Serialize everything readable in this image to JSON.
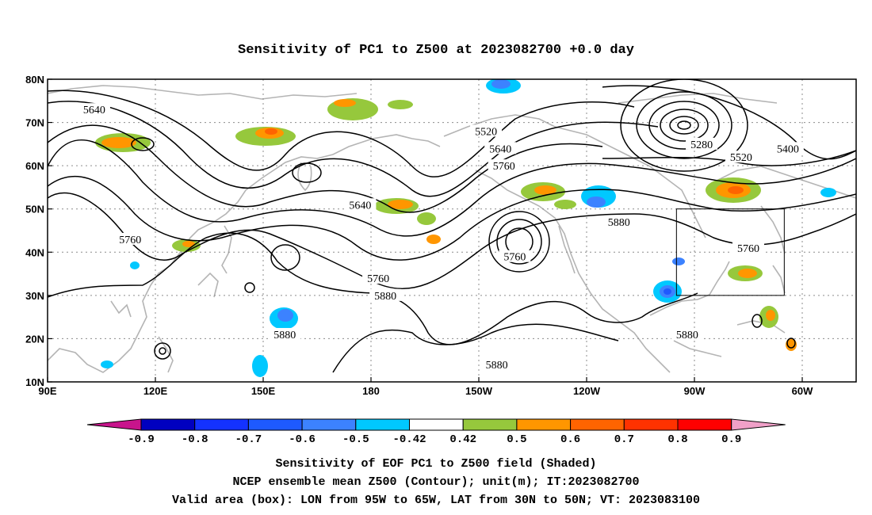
{
  "title": "Sensitivity of PC1 to Z500 at 2023082700 +0.0 day",
  "map": {
    "lon_ticks": [
      "90E",
      "120E",
      "150E",
      "180",
      "150W",
      "120W",
      "90W",
      "60W"
    ],
    "lat_ticks": [
      "80N",
      "70N",
      "60N",
      "50N",
      "40N",
      "30N",
      "20N",
      "10N"
    ],
    "lon_range": [
      "90E",
      "45W"
    ],
    "lat_range": [
      "10N",
      "80N"
    ],
    "grid": true,
    "contour_labels": [
      {
        "text": "5640",
        "lon": 103,
        "lat": 73
      },
      {
        "text": "5640",
        "lon": 177,
        "lat": 51
      },
      {
        "text": "5760",
        "lon": 113,
        "lat": 43
      },
      {
        "text": "5760",
        "lon": -178,
        "lat": 34
      },
      {
        "text": "5880",
        "lon": -176,
        "lat": 30
      },
      {
        "text": "5880",
        "lon": 156,
        "lat": 21
      },
      {
        "text": "5520",
        "lon": -148,
        "lat": 68
      },
      {
        "text": "5640",
        "lon": -144,
        "lat": 64
      },
      {
        "text": "5760",
        "lon": -143,
        "lat": 60
      },
      {
        "text": "5760",
        "lon": -140,
        "lat": 39
      },
      {
        "text": "5880",
        "lon": -111,
        "lat": 47
      },
      {
        "text": "5880",
        "lon": -145,
        "lat": 14
      },
      {
        "text": "5280",
        "lon": -88,
        "lat": 65
      },
      {
        "text": "5520",
        "lon": -77,
        "lat": 62
      },
      {
        "text": "5400",
        "lon": -64,
        "lat": 64
      },
      {
        "text": "5760",
        "lon": -75,
        "lat": 41
      },
      {
        "text": "5880",
        "lon": -92,
        "lat": 21
      }
    ],
    "valid_box": {
      "lon_min": -95,
      "lon_max": -65,
      "lat_min": 30,
      "lat_max": 50
    }
  },
  "colorbar": {
    "labels": [
      "-0.9",
      "-0.8",
      "-0.7",
      "-0.6",
      "-0.5",
      "-0.42",
      "0.42",
      "0.5",
      "0.6",
      "0.7",
      "0.8",
      "0.9"
    ],
    "colors": [
      "#0000c0",
      "#1432ff",
      "#1e5aff",
      "#3c82ff",
      "#00c8ff",
      "#ffffff",
      "#96c83c",
      "#ff9600",
      "#ff6400",
      "#ff3200",
      "#ff0000"
    ],
    "low_extend": "#c8148c",
    "high_extend": "#f0a0c8"
  },
  "caption": [
    "Sensitivity of EOF PC1 to Z500 field (Shaded)",
    "NCEP ensemble mean Z500 (Contour); unit(m); IT:2023082700",
    "Valid area (box): LON from 95W to 65W, LAT from 30N to 50N; VT: 2023083100"
  ]
}
